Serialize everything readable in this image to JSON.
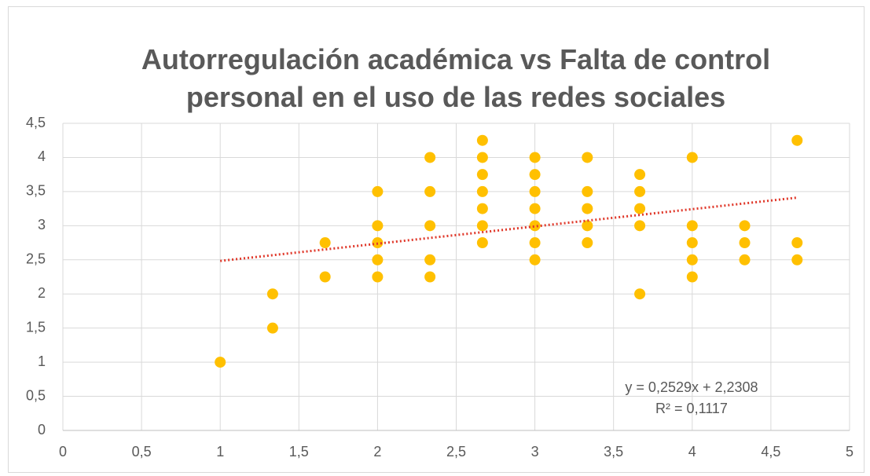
{
  "chart_data": {
    "type": "scatter",
    "title": "Autorregulación académica vs Falta de control personal en el uso de las redes sociales",
    "x": [
      1,
      1.3333,
      1.3333,
      1.6667,
      1.6667,
      2,
      2,
      2,
      2,
      2,
      2.3333,
      2.3333,
      2.3333,
      2.3333,
      2.3333,
      2.6667,
      2.6667,
      2.6667,
      2.6667,
      2.6667,
      2.6667,
      2.6667,
      3,
      3,
      3,
      3,
      3,
      3,
      3,
      3.3333,
      3.3333,
      3.3333,
      3.3333,
      3.3333,
      3.6667,
      3.6667,
      3.6667,
      3.6667,
      3.6667,
      4,
      4,
      4,
      4,
      4,
      4.3333,
      4.3333,
      4.3333,
      4.6667,
      4.6667,
      4.6667
    ],
    "values": [
      1,
      2,
      1.5,
      2.75,
      2.25,
      3.5,
      3,
      2.75,
      2.5,
      2.25,
      4,
      3.5,
      3,
      2.5,
      2.25,
      4.25,
      4,
      3.75,
      3.5,
      3.25,
      3,
      2.75,
      4,
      3.75,
      3.5,
      3.25,
      3,
      2.75,
      2.5,
      4,
      3.5,
      3.25,
      3,
      2.75,
      3.75,
      3.5,
      3.25,
      3,
      2,
      4,
      3,
      2.75,
      2.5,
      2.25,
      3,
      2.75,
      2.5,
      4.25,
      2.75,
      2.5
    ],
    "color": "#ffc000",
    "trendline": {
      "slope": 0.2529,
      "intercept": 2.2308,
      "color": "#e0392b"
    },
    "annotations": [
      "y = 0,2529x + 2,2308",
      "R² = 0,1117"
    ],
    "xlim": [
      0,
      5
    ],
    "xticks": [
      0,
      {
        "value": 0.5,
        "label": "0,5"
      },
      1,
      {
        "value": 1.5,
        "label": "1,5"
      },
      2,
      {
        "value": 2.5,
        "label": "2,5"
      },
      3,
      {
        "value": 3.5,
        "label": "3,5"
      },
      4,
      {
        "value": 4.5,
        "label": "4,5"
      },
      5
    ],
    "ylim": [
      0,
      4.5
    ],
    "yticks": [
      0,
      {
        "value": 0.5,
        "label": "0,5"
      },
      1,
      {
        "value": 1.5,
        "label": "1,5"
      },
      2,
      {
        "value": 2.5,
        "label": "2,5"
      },
      3,
      {
        "value": 3.5,
        "label": "3,5"
      },
      4,
      {
        "value": 4.5,
        "label": "4,5"
      }
    ],
    "grid": true
  }
}
